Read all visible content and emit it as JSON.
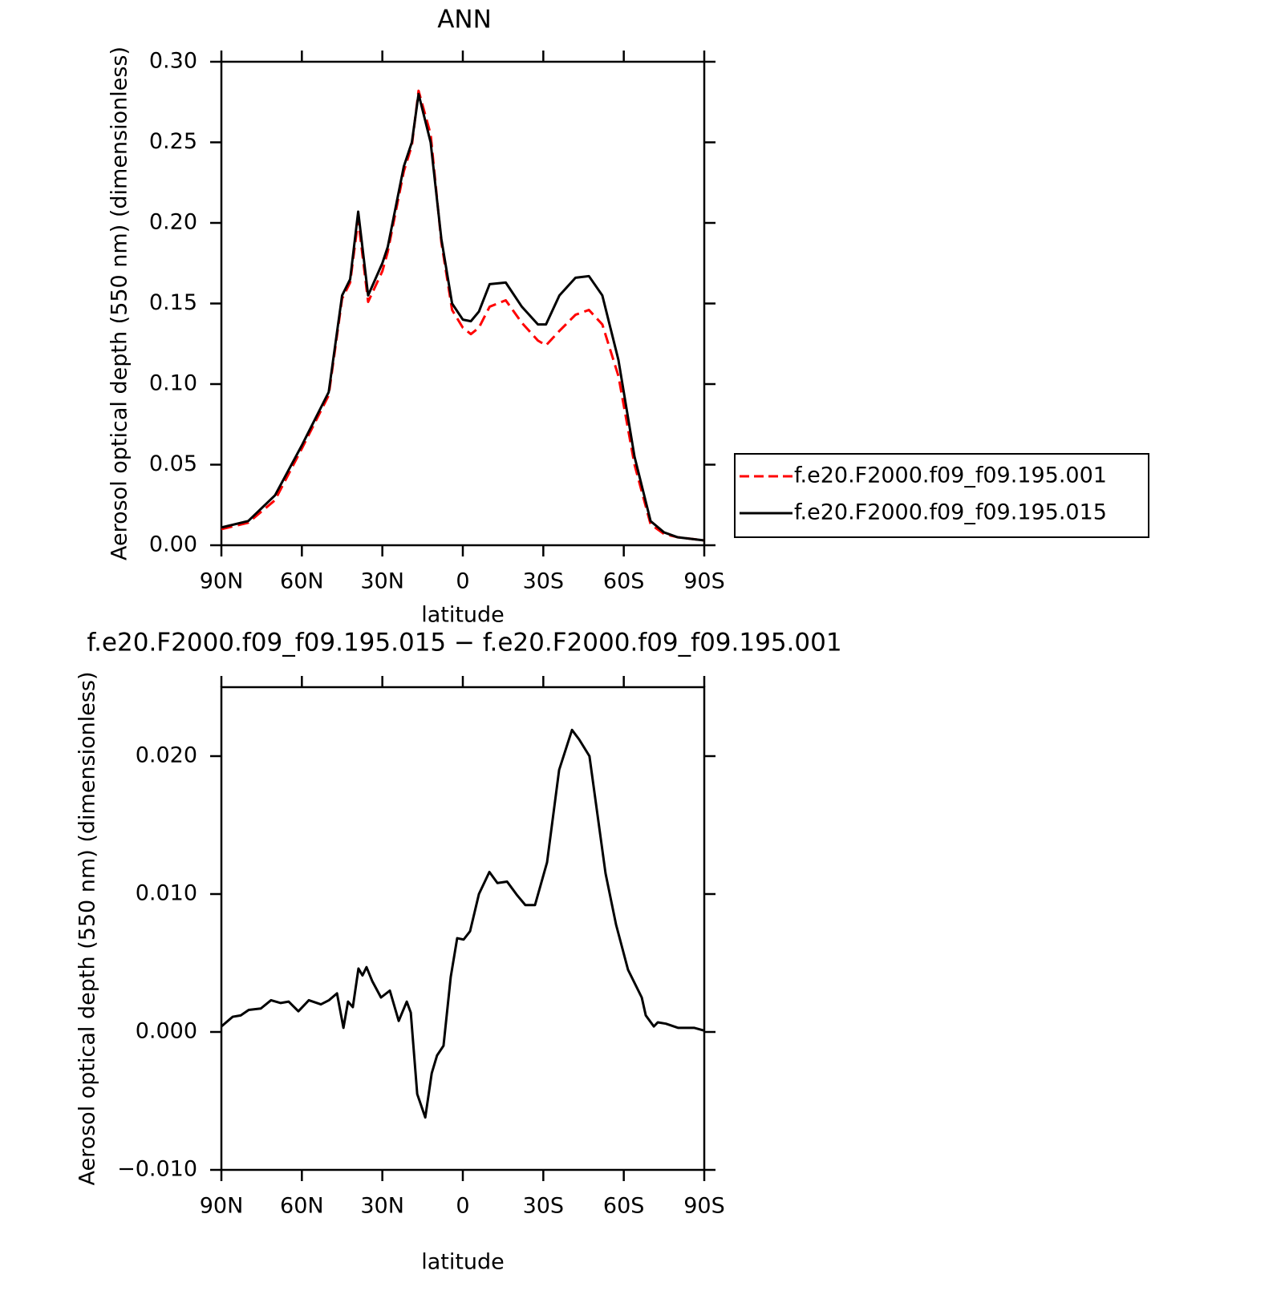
{
  "chart_data": [
    {
      "type": "line",
      "title": "ANN",
      "x_label": "latitude",
      "y_label": "Aerosol optical depth (550 nm) (dimensionless)",
      "x": [
        90,
        80,
        70,
        60,
        50,
        45,
        42,
        39,
        35.3,
        30,
        28,
        22,
        19,
        16.5,
        12,
        8,
        4,
        0,
        -3,
        -6,
        -10,
        -16,
        -22,
        -28,
        -31,
        -36,
        -42,
        -47,
        -52,
        -58,
        -64,
        -70,
        -75,
        -80,
        -90
      ],
      "series": [
        {
          "name": "f.e20.F2000.f09_f09.195.001",
          "color": "#ff0000",
          "line_style": "dashed",
          "values": [
            0.01,
            0.014,
            0.028,
            0.06,
            0.093,
            0.153,
            0.163,
            0.202,
            0.151,
            0.17,
            0.182,
            0.232,
            0.248,
            0.282,
            0.255,
            0.188,
            0.146,
            0.135,
            0.131,
            0.135,
            0.148,
            0.152,
            0.138,
            0.127,
            0.124,
            0.133,
            0.143,
            0.146,
            0.137,
            0.105,
            0.05,
            0.013,
            0.007,
            0.005,
            0.003
          ]
        },
        {
          "name": "f.e20.F2000.f09_f09.195.015",
          "color": "#000000",
          "line_style": "solid",
          "values": [
            0.011,
            0.015,
            0.031,
            0.062,
            0.095,
            0.155,
            0.165,
            0.207,
            0.155,
            0.175,
            0.185,
            0.235,
            0.25,
            0.28,
            0.25,
            0.19,
            0.15,
            0.14,
            0.139,
            0.145,
            0.162,
            0.163,
            0.148,
            0.137,
            0.137,
            0.155,
            0.166,
            0.167,
            0.155,
            0.115,
            0.055,
            0.015,
            0.008,
            0.005,
            0.003
          ]
        }
      ],
      "xlim": [
        90,
        -90
      ],
      "xticks": [
        {
          "value": 90,
          "label": "90N"
        },
        {
          "value": 60,
          "label": "60N"
        },
        {
          "value": 30,
          "label": "30N"
        },
        0,
        {
          "value": -30,
          "label": "30S"
        },
        {
          "value": -60,
          "label": "60S"
        },
        {
          "value": -90,
          "label": "90S"
        }
      ],
      "ylim": [
        0,
        0.3
      ],
      "yticks": [
        {
          "value": 0,
          "label": "0.00"
        },
        0.05,
        {
          "value": 0.1,
          "label": "0.10"
        },
        0.15,
        {
          "value": 0.2,
          "label": "0.20"
        },
        0.25,
        {
          "value": 0.3,
          "label": "0.30"
        }
      ],
      "legend": "right"
    },
    {
      "type": "line",
      "title": "f.e20.F2000.f09_f09.195.015 − f.e20.F2000.f09_f09.195.001",
      "x_label": "latitude",
      "y_label": "Aerosol optical depth (550 nm) (dimensionless)",
      "x": [
        90,
        85.8,
        82.8,
        79.8,
        75.3,
        71.5,
        67.9,
        64.9,
        61.3,
        57.4,
        52.9,
        49.9,
        46.9,
        44.5,
        42.8,
        41,
        38.9,
        37.4,
        35.9,
        33.8,
        30.5,
        27.2,
        23.9,
        20.9,
        19.4,
        17,
        14,
        11.6,
        9.6,
        7.2,
        4.5,
        2.1,
        -0.3,
        -2.7,
        -6,
        -9.9,
        -12.9,
        -16.5,
        -20.3,
        -23.3,
        -26.9,
        -31.4,
        -35.9,
        -40.7,
        -43.4,
        -47.2,
        -53.2,
        -57.1,
        -61.6,
        -66.7,
        -68.2,
        -71.2,
        -72.7,
        -75.7,
        -80.2,
        -86.2,
        -90
      ],
      "series": [
        {
          "color": "#000000",
          "line_style": "solid",
          "values": [
            0.0004,
            0.0011,
            0.0012,
            0.0016,
            0.0017,
            0.0023,
            0.0021,
            0.0022,
            0.0015,
            0.0023,
            0.002,
            0.0023,
            0.0028,
            0.0003,
            0.0022,
            0.0018,
            0.0046,
            0.0041,
            0.0047,
            0.0037,
            0.0025,
            0.003,
            0.0008,
            0.0022,
            0.0014,
            -0.0045,
            -0.0062,
            -0.003,
            -0.0017,
            -0.001,
            0.004,
            0.0068,
            0.0067,
            0.0073,
            0.01,
            0.0116,
            0.0108,
            0.0109,
            0.0099,
            0.0092,
            0.0092,
            0.0123,
            0.019,
            0.0219,
            0.0212,
            0.02,
            0.0115,
            0.0078,
            0.0045,
            0.0025,
            0.0012,
            0.0004,
            0.0007,
            0.0006,
            0.0003,
            0.0003,
            0.0001
          ]
        }
      ],
      "xlim": [
        90,
        -90
      ],
      "xticks": [
        {
          "value": 90,
          "label": "90N"
        },
        {
          "value": 60,
          "label": "60N"
        },
        {
          "value": 30,
          "label": "30N"
        },
        0,
        {
          "value": -30,
          "label": "30S"
        },
        {
          "value": -60,
          "label": "60S"
        },
        {
          "value": -90,
          "label": "90S"
        }
      ],
      "ylim": [
        -0.01,
        0.025
      ],
      "yticks": [
        {
          "value": -0.01,
          "label": "−0.010"
        },
        {
          "value": 0,
          "label": "0.000"
        },
        {
          "value": 0.01,
          "label": "0.010"
        },
        {
          "value": 0.02,
          "label": "0.020"
        }
      ]
    }
  ]
}
